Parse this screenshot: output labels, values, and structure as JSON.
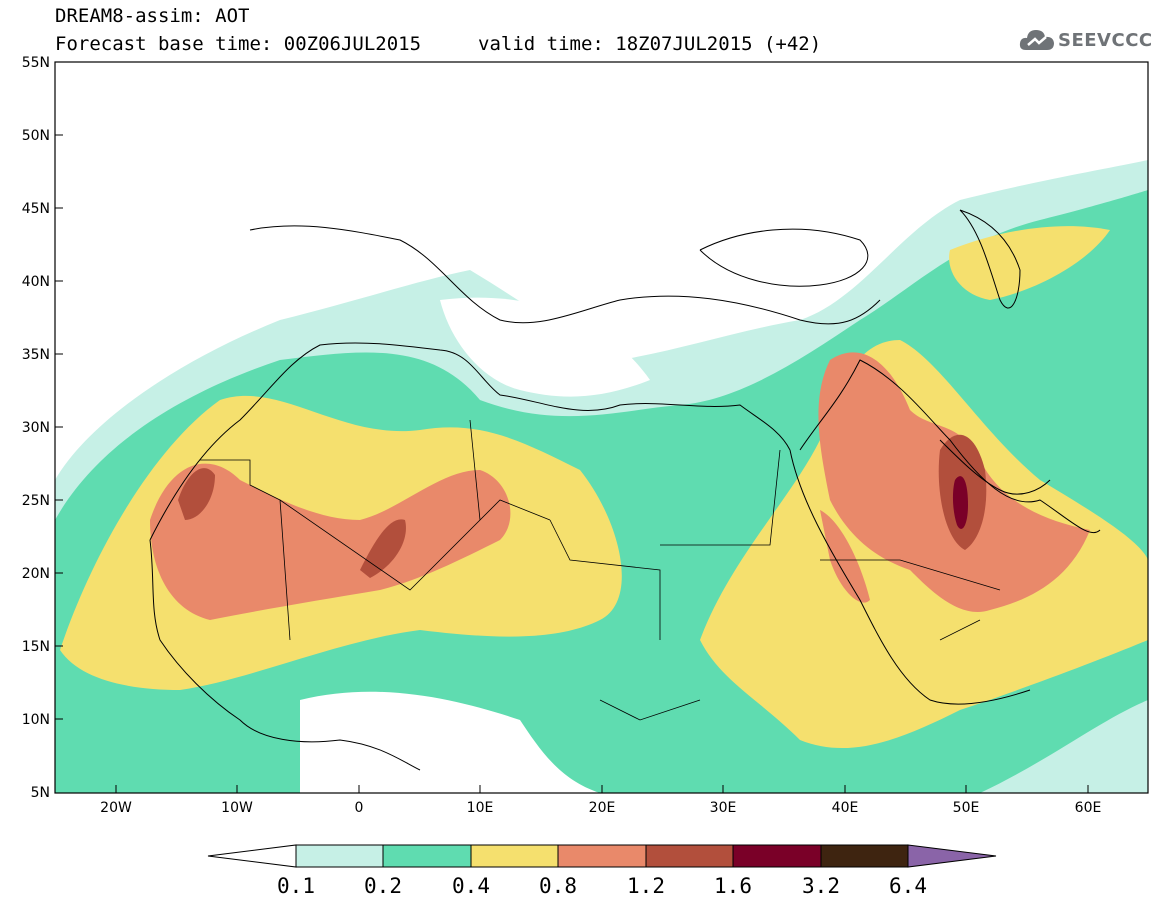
{
  "header": {
    "title": "DREAM8-assim: AOT",
    "base_time": "Forecast base time: 00Z06JUL2015",
    "valid_time": "valid time: 18Z07JUL2015 (+42)"
  },
  "logo": {
    "text": "SEEVCCC",
    "icon": "cloud-icon"
  },
  "map": {
    "lat_labels": [
      "55N",
      "50N",
      "45N",
      "40N",
      "35N",
      "30N",
      "25N",
      "20N",
      "15N",
      "10N",
      "5N"
    ],
    "lon_labels": [
      "20W",
      "10W",
      "0",
      "10E",
      "20E",
      "30E",
      "40E",
      "50E",
      "60E"
    ],
    "lat_range": [
      5,
      55
    ],
    "lon_range": [
      -25,
      65
    ]
  },
  "colorbar": {
    "labels": [
      "0.1",
      "0.2",
      "0.4",
      "0.8",
      "1.2",
      "1.6",
      "3.2",
      "6.4"
    ],
    "colors": [
      "#c6f0e6",
      "#5fdcb0",
      "#f5e06e",
      "#e9896a",
      "#b24f3c",
      "#7a0028",
      "#3e2410",
      "#8a64a8"
    ]
  },
  "colors": {
    "c1": "#c6f0e6",
    "c2": "#5fdcb0",
    "c3": "#f5e06e",
    "c4": "#e9896a",
    "c5": "#b24f3c",
    "c6": "#7a0028"
  }
}
